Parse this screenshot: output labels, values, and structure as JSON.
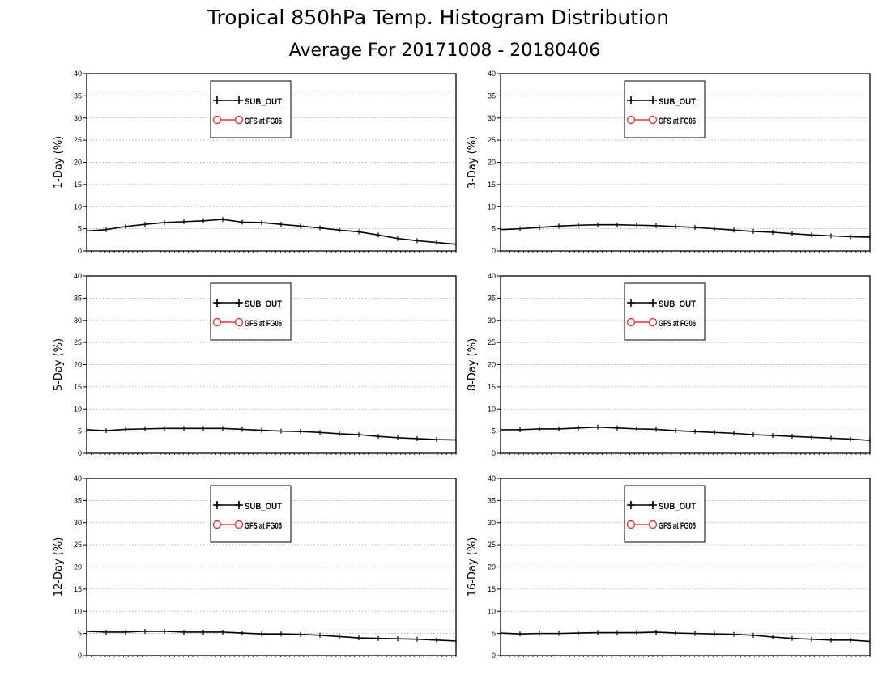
{
  "title": "Tropical 850hPa Temp. Histogram Distribution",
  "subtitle": "Average For 20171008 - 20180406",
  "colors": {
    "series_1": "#000000",
    "series_2": "#ee3333",
    "grid": "#999999"
  },
  "chart_data": [
    {
      "type": "line",
      "ylabel": "1-Day (%)",
      "ylim": [
        0,
        40
      ],
      "yticks": [
        "0",
        "5",
        "10",
        "15",
        "20",
        "25",
        "30",
        "35",
        "40"
      ],
      "grid": true,
      "legend_position": "top-center",
      "series": [
        {
          "name": "SUB_OUT",
          "marker": "plus",
          "values": [
            4.5,
            4.8,
            5.5,
            6.0,
            6.4,
            6.6,
            6.8,
            7.1,
            6.5,
            6.4,
            6.0,
            5.6,
            5.2,
            4.7,
            4.3,
            3.6,
            2.8,
            2.3,
            1.9,
            1.5
          ]
        },
        {
          "name": "GFS at FG06",
          "marker": "circle",
          "values": []
        }
      ]
    },
    {
      "type": "line",
      "ylabel": "3-Day (%)",
      "ylim": [
        0,
        40
      ],
      "yticks": [
        "0",
        "5",
        "10",
        "15",
        "20",
        "25",
        "30",
        "35",
        "40"
      ],
      "grid": true,
      "legend_position": "top-center",
      "series": [
        {
          "name": "SUB_OUT",
          "marker": "plus",
          "values": [
            4.8,
            5.0,
            5.3,
            5.6,
            5.8,
            5.9,
            5.9,
            5.8,
            5.7,
            5.5,
            5.3,
            5.0,
            4.7,
            4.4,
            4.2,
            3.9,
            3.6,
            3.4,
            3.2,
            3.1
          ]
        },
        {
          "name": "GFS at FG06",
          "marker": "circle",
          "values": []
        }
      ]
    },
    {
      "type": "line",
      "ylabel": "5-Day (%)",
      "ylim": [
        0,
        40
      ],
      "yticks": [
        "0",
        "5",
        "10",
        "15",
        "20",
        "25",
        "30",
        "35",
        "40"
      ],
      "grid": true,
      "legend_position": "top-center",
      "series": [
        {
          "name": "SUB_OUT",
          "marker": "plus",
          "values": [
            5.3,
            5.1,
            5.4,
            5.5,
            5.6,
            5.6,
            5.6,
            5.6,
            5.4,
            5.2,
            5.0,
            4.9,
            4.7,
            4.4,
            4.2,
            3.8,
            3.5,
            3.3,
            3.1,
            3.0
          ]
        },
        {
          "name": "GFS at FG06",
          "marker": "circle",
          "values": []
        }
      ]
    },
    {
      "type": "line",
      "ylabel": "8-Day (%)",
      "ylim": [
        0,
        40
      ],
      "yticks": [
        "0",
        "5",
        "10",
        "15",
        "20",
        "25",
        "30",
        "35",
        "40"
      ],
      "grid": true,
      "legend_position": "top-center",
      "series": [
        {
          "name": "SUB_OUT",
          "marker": "plus",
          "values": [
            5.3,
            5.3,
            5.5,
            5.5,
            5.7,
            5.9,
            5.7,
            5.5,
            5.4,
            5.1,
            4.9,
            4.7,
            4.5,
            4.2,
            4.0,
            3.8,
            3.6,
            3.4,
            3.2,
            2.9
          ]
        },
        {
          "name": "GFS at FG06",
          "marker": "circle",
          "values": []
        }
      ]
    },
    {
      "type": "line",
      "ylabel": "12-Day (%)",
      "ylim": [
        0,
        40
      ],
      "yticks": [
        "0",
        "5",
        "10",
        "15",
        "20",
        "25",
        "30",
        "35",
        "40"
      ],
      "grid": true,
      "legend_position": "top-center",
      "series": [
        {
          "name": "SUB_OUT",
          "marker": "plus",
          "values": [
            5.5,
            5.3,
            5.3,
            5.5,
            5.5,
            5.3,
            5.3,
            5.3,
            5.1,
            4.9,
            4.9,
            4.8,
            4.6,
            4.3,
            4.0,
            3.9,
            3.8,
            3.7,
            3.5,
            3.3
          ]
        },
        {
          "name": "GFS at FG06",
          "marker": "circle",
          "values": []
        }
      ]
    },
    {
      "type": "line",
      "ylabel": "16-Day (%)",
      "ylim": [
        0,
        40
      ],
      "yticks": [
        "0",
        "5",
        "10",
        "15",
        "20",
        "25",
        "30",
        "35",
        "40"
      ],
      "grid": true,
      "legend_position": "top-center",
      "series": [
        {
          "name": "SUB_OUT",
          "marker": "plus",
          "values": [
            5.1,
            4.9,
            5.0,
            5.0,
            5.1,
            5.2,
            5.2,
            5.2,
            5.3,
            5.1,
            5.0,
            4.9,
            4.8,
            4.6,
            4.2,
            3.9,
            3.7,
            3.5,
            3.5,
            3.2
          ]
        },
        {
          "name": "GFS at FG06",
          "marker": "circle",
          "values": []
        }
      ]
    }
  ]
}
